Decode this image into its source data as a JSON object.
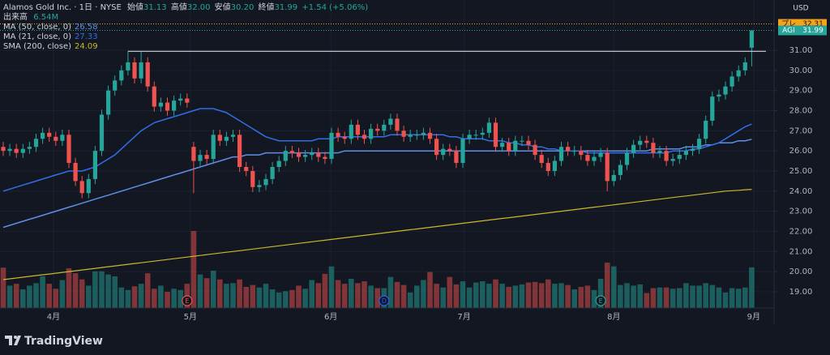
{
  "chart_data": {
    "type": "candlestick",
    "header": {
      "title": "Alamos Gold Inc. · 1日 · NYSE",
      "open_name": "始値",
      "open": "31.13",
      "high_name": "高値",
      "high": "32.00",
      "low_name": "安値",
      "low": "30.20",
      "close_name": "終値",
      "close": "31.99",
      "change": "+1.54 (+5.06%)"
    },
    "volume_name": "出来高",
    "volume_label": "6.54M",
    "currency": "USD",
    "up_color": "#26a69a",
    "down_color": "#ef5350",
    "volume_up_color": "rgba(38,166,154,0.5)",
    "volume_down_color": "rgba(239,83,80,0.5)",
    "open": [
      26.2,
      26.0,
      26.1,
      25.9,
      26.1,
      26.2,
      26.6,
      26.9,
      26.7,
      26.5,
      26.8,
      25.4,
      24.5,
      23.9,
      24.6,
      26.0,
      27.8,
      29.0,
      29.5,
      30.0,
      30.4,
      29.6,
      30.4,
      29.2,
      28.2,
      28.4,
      28.0,
      28.5,
      28.6,
      26.2,
      25.5,
      25.8,
      25.6,
      26.8,
      26.5,
      26.7,
      26.8,
      25.2,
      25.0,
      24.2,
      24.3,
      24.6,
      25.2,
      25.5,
      26.0,
      25.9,
      25.7,
      25.8,
      25.9,
      25.7,
      25.6,
      26.9,
      26.7,
      26.6,
      27.3,
      26.8,
      26.6,
      27.1,
      27.0,
      27.3,
      27.6,
      27.0,
      26.7,
      26.8,
      26.8,
      26.9,
      26.6,
      25.8,
      26.1,
      26.0,
      25.4,
      26.6,
      26.8,
      26.8,
      26.9,
      27.4,
      26.2,
      26.4,
      26.0,
      26.5,
      26.5,
      26.3,
      25.8,
      25.4,
      25.0,
      25.5,
      26.2,
      26.0,
      26.0,
      25.8,
      25.5,
      25.7,
      25.9,
      24.5,
      24.8,
      25.3,
      25.9,
      26.3,
      26.5,
      26.4,
      25.9,
      26.0,
      25.5,
      25.6,
      25.8,
      26.0,
      26.1,
      26.6,
      27.5,
      28.7,
      28.8,
      29.2,
      29.7,
      30.0,
      31.13
    ],
    "high": [
      26.45,
      26.35,
      26.35,
      26.35,
      26.45,
      26.85,
      27.15,
      27.15,
      26.95,
      27.05,
      27.05,
      25.65,
      24.75,
      24.85,
      26.25,
      28.05,
      29.25,
      29.75,
      30.25,
      30.95,
      30.65,
      30.95,
      30.65,
      29.45,
      28.65,
      28.65,
      28.75,
      28.85,
      28.85,
      26.45,
      26.05,
      26.05,
      27.05,
      27.05,
      26.95,
      27.05,
      27.05,
      25.45,
      25.25,
      24.55,
      24.85,
      25.45,
      25.75,
      26.25,
      26.25,
      26.15,
      26.05,
      26.15,
      26.15,
      25.95,
      27.15,
      27.15,
      26.95,
      27.55,
      27.55,
      27.05,
      27.35,
      27.35,
      27.55,
      27.85,
      27.85,
      27.25,
      27.05,
      27.05,
      27.15,
      27.15,
      26.85,
      26.35,
      26.35,
      26.25,
      26.85,
      27.05,
      27.05,
      27.15,
      27.65,
      27.65,
      26.65,
      26.65,
      26.75,
      26.75,
      26.75,
      26.55,
      26.05,
      25.65,
      25.75,
      26.45,
      26.45,
      26.25,
      26.25,
      26.05,
      25.95,
      26.15,
      26.15,
      25.05,
      25.55,
      26.15,
      26.55,
      26.75,
      26.75,
      26.65,
      26.25,
      26.25,
      25.85,
      26.05,
      26.25,
      26.35,
      26.85,
      27.75,
      28.95,
      29.05,
      29.45,
      29.95,
      30.25,
      30.65,
      32.0
    ],
    "low": [
      25.75,
      25.75,
      25.65,
      25.65,
      25.85,
      25.95,
      26.35,
      26.45,
      26.25,
      26.25,
      25.15,
      24.25,
      23.65,
      23.65,
      24.35,
      25.75,
      27.55,
      28.75,
      29.25,
      29.75,
      29.35,
      29.35,
      28.95,
      27.95,
      27.95,
      27.75,
      27.75,
      28.25,
      28.15,
      23.9,
      25.25,
      25.35,
      25.35,
      26.25,
      26.25,
      26.45,
      24.95,
      24.75,
      23.95,
      23.95,
      24.05,
      24.35,
      24.95,
      25.25,
      25.65,
      25.45,
      25.45,
      25.55,
      25.45,
      25.35,
      25.35,
      26.45,
      26.35,
      26.35,
      26.55,
      26.35,
      26.35,
      26.75,
      26.75,
      27.05,
      26.75,
      26.45,
      26.45,
      26.55,
      26.55,
      26.35,
      25.55,
      25.55,
      25.75,
      25.15,
      25.15,
      26.35,
      26.55,
      26.55,
      26.65,
      25.95,
      25.95,
      25.75,
      25.75,
      26.25,
      26.05,
      25.55,
      25.15,
      24.75,
      24.75,
      25.25,
      25.75,
      25.75,
      25.55,
      25.25,
      25.25,
      25.45,
      24.0,
      24.25,
      24.55,
      25.05,
      25.65,
      26.05,
      26.15,
      25.65,
      25.65,
      25.25,
      25.25,
      25.35,
      25.55,
      25.75,
      25.85,
      26.35,
      27.25,
      28.45,
      28.55,
      28.95,
      29.45,
      29.75,
      30.2
    ],
    "close": [
      26.0,
      26.1,
      25.9,
      26.1,
      26.2,
      26.6,
      26.9,
      26.7,
      26.5,
      26.8,
      25.4,
      24.5,
      23.9,
      24.6,
      26.0,
      27.8,
      29.0,
      29.5,
      30.0,
      30.4,
      29.6,
      30.4,
      29.2,
      28.2,
      28.4,
      28.0,
      28.5,
      28.6,
      28.4,
      25.5,
      25.8,
      25.6,
      26.8,
      26.5,
      26.7,
      26.8,
      25.2,
      25.0,
      24.2,
      24.3,
      24.6,
      25.2,
      25.5,
      26.0,
      25.9,
      25.7,
      25.8,
      25.9,
      25.7,
      25.6,
      26.9,
      26.7,
      26.6,
      27.3,
      26.8,
      26.6,
      27.1,
      27.0,
      27.3,
      27.6,
      27.0,
      26.7,
      26.8,
      26.8,
      26.9,
      26.6,
      25.8,
      26.1,
      26.0,
      25.4,
      26.6,
      26.8,
      26.8,
      26.9,
      27.4,
      26.2,
      26.4,
      26.0,
      26.5,
      26.5,
      26.3,
      25.8,
      25.4,
      25.0,
      25.5,
      26.2,
      26.0,
      26.0,
      25.8,
      25.5,
      25.7,
      25.9,
      24.5,
      24.8,
      25.3,
      25.9,
      26.3,
      26.5,
      26.4,
      25.9,
      26.0,
      25.5,
      25.6,
      25.8,
      26.0,
      26.1,
      26.6,
      27.5,
      28.7,
      28.8,
      29.2,
      29.7,
      30.0,
      30.4,
      31.99
    ],
    "volume": [
      6.5,
      3.6,
      3.9,
      3.0,
      3.6,
      4.0,
      5.1,
      3.9,
      3.1,
      4.5,
      6.4,
      5.6,
      4.6,
      3.6,
      5.9,
      5.9,
      5.4,
      5.1,
      3.3,
      2.9,
      3.5,
      3.9,
      5.6,
      3.1,
      3.6,
      2.6,
      3.1,
      2.9,
      3.9,
      12.4,
      5.4,
      4.8,
      6.0,
      4.6,
      3.9,
      4.0,
      4.6,
      3.4,
      3.7,
      3.3,
      3.9,
      3.0,
      2.5,
      2.7,
      2.9,
      3.6,
      3.1,
      4.5,
      4.0,
      5.5,
      6.7,
      4.5,
      3.9,
      4.7,
      4.0,
      4.3,
      3.6,
      3.2,
      3.2,
      5.0,
      4.2,
      3.7,
      2.5,
      3.6,
      4.5,
      5.8,
      3.9,
      3.3,
      5.0,
      3.8,
      4.3,
      3.3,
      4.1,
      4.3,
      3.9,
      4.6,
      3.9,
      3.4,
      3.6,
      3.8,
      4.1,
      4.2,
      4.0,
      4.6,
      3.9,
      4.0,
      3.7,
      3.0,
      3.4,
      3.6,
      2.9,
      4.7,
      7.3,
      6.7,
      3.7,
      4.0,
      3.6,
      3.8,
      2.4,
      3.2,
      3.3,
      3.3,
      3.1,
      3.2,
      4.0,
      3.6,
      3.6,
      4.0,
      3.7,
      3.3,
      2.5,
      3.2,
      3.1,
      3.3,
      6.54
    ],
    "series": [
      {
        "name": "MA (50, close, 0)",
        "color": "#5d8fe6",
        "values": [
          22.2,
          22.3,
          22.4,
          22.5,
          22.6,
          22.7,
          22.8,
          22.9,
          23.0,
          23.1,
          23.2,
          23.3,
          23.4,
          23.5,
          23.6,
          23.7,
          23.8,
          23.9,
          24.0,
          24.1,
          24.2,
          24.3,
          24.4,
          24.5,
          24.6,
          24.7,
          24.8,
          24.9,
          25.0,
          25.1,
          25.2,
          25.3,
          25.4,
          25.5,
          25.6,
          25.7,
          25.7,
          25.8,
          25.8,
          25.8,
          25.9,
          25.9,
          25.9,
          25.9,
          25.9,
          25.9,
          25.9,
          25.9,
          25.9,
          25.9,
          25.9,
          25.9,
          26.0,
          26.0,
          26.0,
          26.0,
          26.0,
          26.0,
          26.0,
          26.0,
          26.0,
          26.0,
          26.0,
          26.0,
          26.0,
          26.0,
          26.0,
          26.0,
          26.0,
          26.0,
          26.0,
          26.0,
          26.0,
          26.0,
          26.0,
          26.0,
          26.0,
          26.0,
          26.0,
          26.0,
          26.0,
          26.0,
          26.0,
          26.0,
          26.0,
          26.0,
          26.0,
          26.0,
          26.0,
          26.0,
          26.0,
          26.0,
          26.0,
          26.0,
          26.0,
          26.0,
          26.0,
          26.0,
          26.0,
          26.1,
          26.1,
          26.1,
          26.1,
          26.1,
          26.2,
          26.2,
          26.2,
          26.3,
          26.3,
          26.4,
          26.4,
          26.4,
          26.5,
          26.5,
          26.58
        ]
      },
      {
        "name": "MA (21, close, 0)",
        "color": "#2f6fe8",
        "values": [
          24.0,
          24.1,
          24.2,
          24.3,
          24.4,
          24.5,
          24.6,
          24.7,
          24.8,
          24.9,
          25.0,
          25.0,
          25.0,
          25.1,
          25.2,
          25.4,
          25.6,
          25.8,
          26.1,
          26.4,
          26.7,
          27.0,
          27.2,
          27.4,
          27.5,
          27.6,
          27.7,
          27.8,
          27.9,
          28.0,
          28.1,
          28.1,
          28.1,
          28.0,
          27.9,
          27.7,
          27.5,
          27.3,
          27.1,
          26.9,
          26.7,
          26.6,
          26.5,
          26.5,
          26.5,
          26.5,
          26.5,
          26.5,
          26.6,
          26.6,
          26.6,
          26.7,
          26.7,
          26.7,
          26.7,
          26.7,
          26.7,
          26.7,
          26.7,
          26.8,
          26.8,
          26.8,
          26.8,
          26.8,
          26.8,
          26.8,
          26.8,
          26.8,
          26.7,
          26.7,
          26.6,
          26.6,
          26.6,
          26.6,
          26.5,
          26.5,
          26.5,
          26.4,
          26.4,
          26.3,
          26.3,
          26.2,
          26.2,
          26.1,
          26.1,
          26.0,
          26.0,
          26.0,
          26.0,
          25.9,
          25.9,
          25.9,
          25.9,
          25.9,
          25.9,
          25.9,
          25.9,
          25.9,
          25.9,
          25.9,
          25.9,
          25.9,
          26.0,
          26.0,
          26.0,
          26.1,
          26.1,
          26.2,
          26.3,
          26.4,
          26.6,
          26.8,
          27.0,
          27.2,
          27.33
        ]
      },
      {
        "name": "SMA (200, close)",
        "color": "#c9b82c",
        "values": [
          19.6,
          19.64,
          19.68,
          19.72,
          19.76,
          19.8,
          19.84,
          19.88,
          19.92,
          19.96,
          20.0,
          20.04,
          20.08,
          20.12,
          20.16,
          20.2,
          20.24,
          20.28,
          20.32,
          20.36,
          20.4,
          20.44,
          20.48,
          20.52,
          20.56,
          20.6,
          20.64,
          20.68,
          20.72,
          20.76,
          20.8,
          20.84,
          20.88,
          20.92,
          20.96,
          21.0,
          21.04,
          21.08,
          21.12,
          21.16,
          21.2,
          21.24,
          21.28,
          21.32,
          21.36,
          21.4,
          21.44,
          21.48,
          21.52,
          21.56,
          21.6,
          21.64,
          21.68,
          21.72,
          21.76,
          21.8,
          21.84,
          21.88,
          21.92,
          21.96,
          22.0,
          22.04,
          22.08,
          22.12,
          22.16,
          22.2,
          22.24,
          22.28,
          22.32,
          22.36,
          22.4,
          22.44,
          22.48,
          22.52,
          22.56,
          22.6,
          22.64,
          22.68,
          22.72,
          22.76,
          22.8,
          22.84,
          22.88,
          22.92,
          22.96,
          23.0,
          23.04,
          23.08,
          23.12,
          23.16,
          23.2,
          23.24,
          23.28,
          23.32,
          23.36,
          23.4,
          23.44,
          23.48,
          23.52,
          23.56,
          23.6,
          23.64,
          23.68,
          23.72,
          23.76,
          23.8,
          23.84,
          23.88,
          23.92,
          23.96,
          24.0,
          24.02,
          24.04,
          24.07,
          24.09
        ]
      }
    ],
    "hline": 30.95,
    "premarket": {
      "label": "プレ",
      "value": 32.31,
      "color": "#f7a21b"
    },
    "last_label": "AGI",
    "events": [
      {
        "label": "E",
        "index": 28,
        "color": "#ef5350"
      },
      {
        "label": "D",
        "index": 58,
        "color": "#2962ff"
      },
      {
        "label": "E",
        "index": 91,
        "color": "#26a69a"
      }
    ],
    "ylim": [
      18.19,
      33.5
    ],
    "yticks": [
      {
        "value": 19,
        "label": "19.00"
      },
      {
        "value": 20,
        "label": "20.00"
      },
      {
        "value": 21,
        "label": "21.00"
      },
      {
        "value": 22,
        "label": "22.00"
      },
      {
        "value": 23,
        "label": "23.00"
      },
      {
        "value": 24,
        "label": "24.00"
      },
      {
        "value": 25,
        "label": "25.00"
      },
      {
        "value": 26,
        "label": "26.00"
      },
      {
        "value": 27,
        "label": "27.00"
      },
      {
        "value": 28,
        "label": "28.00"
      },
      {
        "value": 29,
        "label": "29.00"
      },
      {
        "value": 30,
        "label": "30.00"
      },
      {
        "value": 31,
        "label": "31.00"
      }
    ],
    "xticks": [
      {
        "value": 7.65,
        "label": "4月"
      },
      {
        "value": 28.5,
        "label": "5月"
      },
      {
        "value": 49.9,
        "label": "6月"
      },
      {
        "value": 70.2,
        "label": "7月"
      },
      {
        "value": 93,
        "label": "8月"
      },
      {
        "value": 114.3,
        "label": "9月"
      }
    ],
    "grid": true
  },
  "footer": {
    "brand": "TradingView"
  }
}
